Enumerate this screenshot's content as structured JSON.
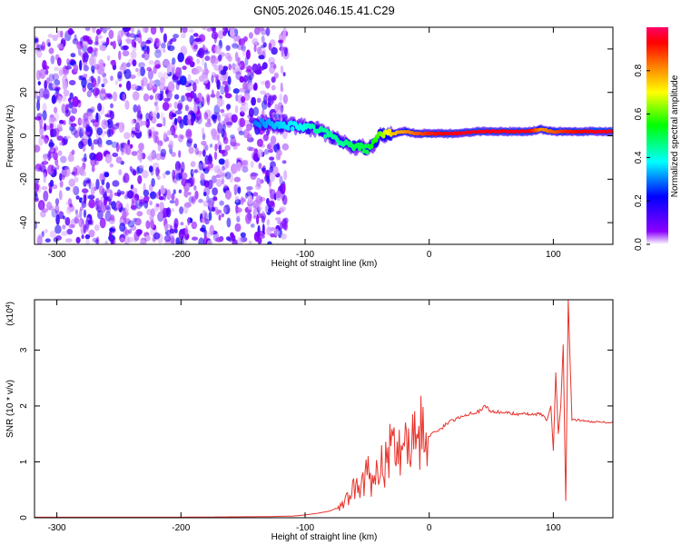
{
  "figure": {
    "title": "GN05.2026.046.15.41.C29"
  },
  "colors": {
    "axis": "#000000",
    "snr_line": "#e8332c",
    "background": "#ffffff"
  },
  "chart_data": [
    {
      "type": "heatmap",
      "title": "GN05.2026.046.15.41.C29",
      "xlabel": "Height of straight line (km)",
      "ylabel": "Frequency (Hz)",
      "xlim": [
        -318,
        148
      ],
      "ylim": [
        -50,
        50
      ],
      "xticks": [
        -300,
        -200,
        -100,
        0,
        100
      ],
      "yticks": [
        -40,
        -20,
        0,
        20,
        40
      ],
      "colorbar": {
        "label": "Normalized spectral amplitude",
        "range": [
          0.0,
          1.0
        ],
        "ticks": [
          0.0,
          0.2,
          0.4,
          0.6,
          0.8
        ],
        "colormap": [
          "#ffffff",
          "#8b00ff",
          "#0000ff",
          "#00ffff",
          "#00ff00",
          "#ffff00",
          "#ff8000",
          "#ff0000",
          "#ff0066"
        ]
      },
      "noise_region_x": [
        -318,
        -115
      ],
      "signal_track": {
        "x": [
          -140,
          -120,
          -100,
          -90,
          -80,
          -70,
          -60,
          -50,
          -45,
          -40,
          -30,
          -20,
          -10,
          0,
          20,
          40,
          60,
          80,
          90,
          100,
          110,
          130,
          148
        ],
        "freq": [
          6,
          5,
          4,
          3,
          0,
          -3,
          -5,
          -6,
          -4,
          0,
          1,
          2,
          1,
          1,
          1,
          2,
          2,
          2,
          3,
          2,
          2,
          2,
          2
        ],
        "amplitude": [
          0.3,
          0.35,
          0.4,
          0.45,
          0.45,
          0.45,
          0.5,
          0.5,
          0.55,
          0.6,
          0.75,
          0.8,
          0.85,
          0.9,
          0.95,
          0.95,
          0.95,
          0.95,
          0.8,
          0.85,
          0.9,
          0.95,
          0.95
        ]
      }
    },
    {
      "type": "line",
      "ylabel": "SNR (10 * v/v)",
      "xlabel": "Height of straight line (km)",
      "y_multiplier": "(x10^4)",
      "xlim": [
        -318,
        148
      ],
      "ylim": [
        0,
        3.9
      ],
      "xticks": [
        -300,
        -200,
        -100,
        0,
        100
      ],
      "yticks": [
        0,
        1,
        2,
        3
      ],
      "series": [
        {
          "x": [
            -318,
            -200,
            -130,
            -110,
            -100,
            -90,
            -80,
            -70,
            -65,
            -60,
            -55,
            -50,
            -45,
            -40,
            -35,
            -30,
            -25,
            -20,
            -15,
            -10,
            -5,
            0,
            5,
            10,
            15,
            20,
            25,
            30,
            35,
            40,
            45,
            50,
            60,
            70,
            80,
            90,
            95,
            98,
            100,
            102,
            104,
            106,
            108,
            110,
            112,
            115,
            120,
            130,
            148
          ],
          "values": [
            0.01,
            0.01,
            0.02,
            0.03,
            0.05,
            0.08,
            0.12,
            0.22,
            0.35,
            0.55,
            0.45,
            0.8,
            0.6,
            1.1,
            0.95,
            1.3,
            1.2,
            1.5,
            1.35,
            1.5,
            1.55,
            1.45,
            1.55,
            1.6,
            1.7,
            1.75,
            1.8,
            1.85,
            1.88,
            1.9,
            2.0,
            1.9,
            1.88,
            1.86,
            1.85,
            1.85,
            1.75,
            2.0,
            1.2,
            2.6,
            1.5,
            2.0,
            3.1,
            0.3,
            3.9,
            1.75,
            1.75,
            1.72,
            1.7
          ]
        }
      ]
    }
  ]
}
